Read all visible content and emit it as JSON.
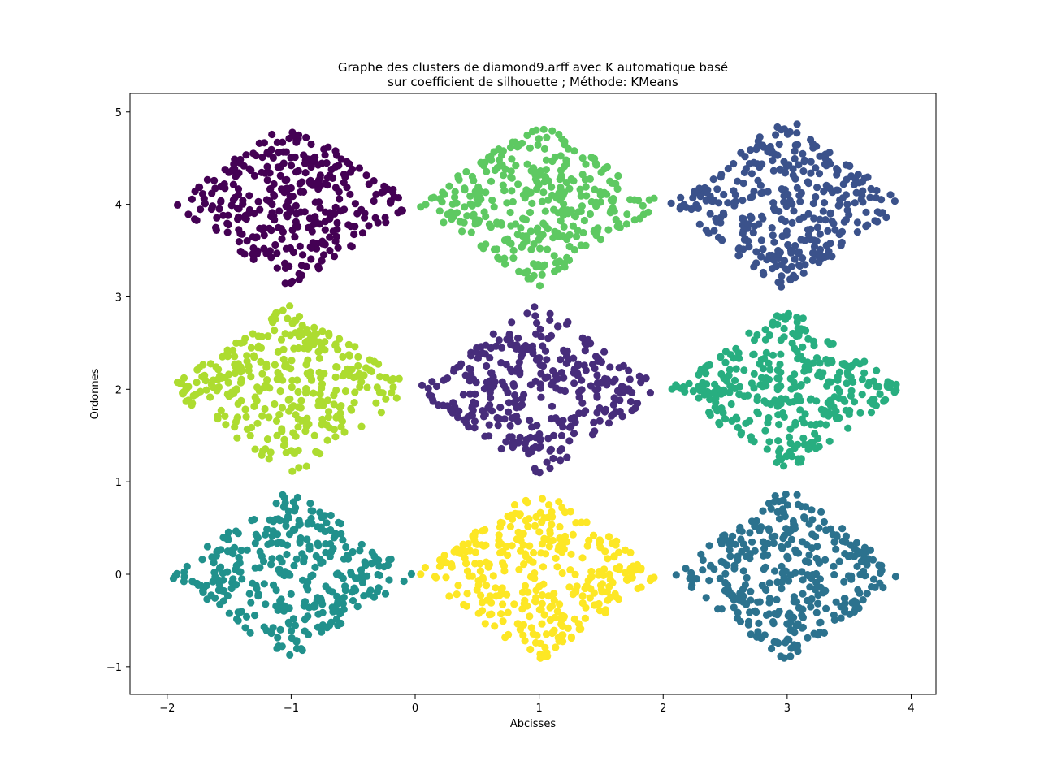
{
  "chart_data": {
    "type": "scatter",
    "title_line1": "Graphe des clusters de diamond9.arff avec K automatique basé",
    "title_line2": "sur coefficient de silhouette ; Méthode: KMeans",
    "xlabel": "Abcisses",
    "ylabel": "Ordonnes",
    "xlim": [
      -2.3,
      4.2
    ],
    "ylim": [
      -1.3,
      5.2
    ],
    "xticks": [
      -2,
      -1,
      0,
      1,
      2,
      3,
      4
    ],
    "xtick_labels": [
      "−2",
      "−1",
      "0",
      "1",
      "2",
      "3",
      "4"
    ],
    "yticks": [
      -1,
      0,
      1,
      2,
      3,
      4,
      5
    ],
    "ytick_labels": [
      "−1",
      "0",
      "1",
      "2",
      "3",
      "4",
      "5"
    ],
    "grid": false,
    "legend": "none",
    "marker": "circle",
    "points_per_cluster_approx": 333,
    "clusters": [
      {
        "center": [
          -1,
          4
        ],
        "half_width": 1.0,
        "half_height": 0.9,
        "color": "#440154"
      },
      {
        "center": [
          1,
          4
        ],
        "half_width": 1.0,
        "half_height": 0.9,
        "color": "#5ec962"
      },
      {
        "center": [
          3,
          4
        ],
        "half_width": 0.95,
        "half_height": 0.95,
        "color": "#3b528b"
      },
      {
        "center": [
          -1,
          2
        ],
        "half_width": 1.0,
        "half_height": 0.95,
        "color": "#addc30"
      },
      {
        "center": [
          1,
          2
        ],
        "half_width": 1.0,
        "half_height": 0.95,
        "color": "#472d7b"
      },
      {
        "center": [
          3,
          2
        ],
        "half_width": 0.95,
        "half_height": 0.9,
        "color": "#28ae80"
      },
      {
        "center": [
          -1,
          0
        ],
        "half_width": 1.0,
        "half_height": 0.95,
        "color": "#21918c"
      },
      {
        "center": [
          1,
          0
        ],
        "half_width": 1.0,
        "half_height": 0.95,
        "color": "#fde725"
      },
      {
        "center": [
          3,
          0
        ],
        "half_width": 0.95,
        "half_height": 0.95,
        "color": "#2c728e"
      }
    ]
  }
}
